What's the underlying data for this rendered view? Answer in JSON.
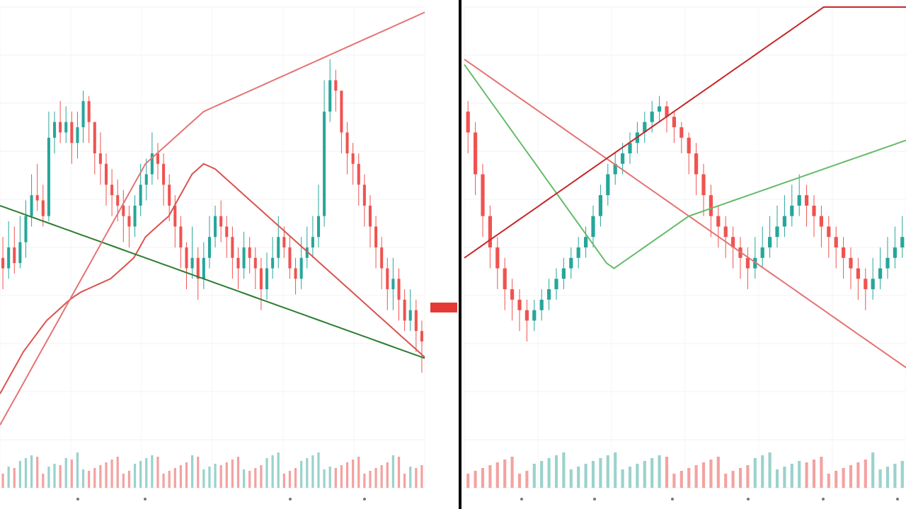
{
  "chart_data": [
    {
      "type": "candlestick",
      "panel": "left",
      "ylim": [
        180,
        1100
      ],
      "y_ticks": [],
      "grid": true,
      "candles": [
        [
          620,
          600,
          660,
          560
        ],
        [
          600,
          640,
          690,
          580
        ],
        [
          640,
          610,
          680,
          590
        ],
        [
          610,
          650,
          700,
          600
        ],
        [
          650,
          700,
          730,
          620
        ],
        [
          700,
          740,
          780,
          680
        ],
        [
          740,
          730,
          800,
          710
        ],
        [
          730,
          700,
          760,
          680
        ],
        [
          700,
          850,
          900,
          690
        ],
        [
          850,
          880,
          900,
          820
        ],
        [
          880,
          860,
          920,
          840
        ],
        [
          860,
          880,
          910,
          840
        ],
        [
          880,
          840,
          900,
          800
        ],
        [
          840,
          870,
          900,
          810
        ],
        [
          870,
          920,
          940,
          840
        ],
        [
          920,
          880,
          930,
          840
        ],
        [
          880,
          820,
          860,
          780
        ],
        [
          820,
          800,
          860,
          760
        ],
        [
          800,
          760,
          820,
          720
        ],
        [
          760,
          740,
          790,
          700
        ],
        [
          740,
          720,
          770,
          690
        ],
        [
          720,
          700,
          750,
          650
        ],
        [
          700,
          680,
          720,
          640
        ],
        [
          680,
          720,
          740,
          660
        ],
        [
          720,
          760,
          800,
          700
        ],
        [
          760,
          780,
          810,
          730
        ],
        [
          780,
          820,
          860,
          760
        ],
        [
          820,
          800,
          840,
          770
        ],
        [
          800,
          760,
          820,
          720
        ],
        [
          760,
          720,
          780,
          690
        ],
        [
          720,
          680,
          740,
          640
        ],
        [
          680,
          640,
          700,
          600
        ],
        [
          640,
          600,
          650,
          560
        ],
        [
          600,
          620,
          680,
          580
        ],
        [
          620,
          580,
          640,
          540
        ],
        [
          580,
          620,
          650,
          560
        ],
        [
          620,
          660,
          700,
          600
        ],
        [
          660,
          700,
          720,
          640
        ],
        [
          700,
          680,
          730,
          650
        ],
        [
          680,
          660,
          700,
          620
        ],
        [
          660,
          620,
          680,
          580
        ],
        [
          620,
          600,
          640,
          560
        ],
        [
          600,
          640,
          670,
          580
        ],
        [
          640,
          620,
          660,
          590
        ],
        [
          620,
          600,
          640,
          560
        ],
        [
          600,
          560,
          620,
          520
        ],
        [
          560,
          600,
          630,
          540
        ],
        [
          600,
          620,
          660,
          580
        ],
        [
          620,
          660,
          700,
          600
        ],
        [
          660,
          640,
          680,
          620
        ],
        [
          640,
          600,
          660,
          580
        ],
        [
          600,
          580,
          620,
          550
        ],
        [
          580,
          620,
          660,
          560
        ],
        [
          620,
          640,
          680,
          600
        ],
        [
          640,
          660,
          700,
          620
        ],
        [
          660,
          700,
          760,
          640
        ],
        [
          700,
          900,
          960,
          680
        ],
        [
          900,
          960,
          1000,
          880
        ],
        [
          960,
          940,
          980,
          900
        ],
        [
          940,
          860,
          920,
          820
        ],
        [
          860,
          820,
          880,
          780
        ],
        [
          820,
          800,
          840,
          760
        ],
        [
          800,
          760,
          820,
          720
        ],
        [
          760,
          720,
          780,
          680
        ],
        [
          720,
          680,
          740,
          640
        ],
        [
          680,
          640,
          700,
          600
        ],
        [
          640,
          600,
          660,
          560
        ],
        [
          600,
          560,
          620,
          520
        ],
        [
          560,
          580,
          620,
          520
        ],
        [
          580,
          540,
          600,
          500
        ],
        [
          540,
          500,
          560,
          480
        ],
        [
          500,
          520,
          560,
          480
        ],
        [
          520,
          480,
          540,
          440
        ],
        [
          480,
          460,
          500,
          400
        ]
      ],
      "series": [
        {
          "color": "#d9534f",
          "values": [
            360,
            380,
            400,
            420,
            440,
            455,
            470,
            485,
            500,
            510,
            520,
            530,
            540,
            548,
            555,
            560,
            565,
            570,
            575,
            580,
            590,
            600,
            610,
            620,
            640,
            660,
            670,
            680,
            690,
            700,
            720,
            740,
            760,
            780,
            790,
            800,
            795,
            790,
            780,
            770,
            760,
            750,
            740,
            730,
            720,
            710,
            700,
            690,
            680,
            670,
            660,
            650,
            640,
            630,
            620,
            610,
            600,
            590,
            580,
            570,
            560,
            550,
            540,
            530,
            520,
            510,
            500,
            490,
            480,
            470,
            460,
            450,
            440,
            430
          ]
        },
        {
          "color": "#2e7d32",
          "values": [
            720,
            716,
            712,
            708,
            704,
            700,
            696,
            692,
            688,
            684,
            680,
            676,
            672,
            668,
            664,
            660,
            656,
            652,
            648,
            644,
            640,
            636,
            632,
            628,
            624,
            620,
            616,
            612,
            608,
            604,
            600,
            596,
            592,
            588,
            584,
            580,
            576,
            572,
            568,
            564,
            560,
            556,
            552,
            548,
            544,
            540,
            536,
            532,
            528,
            524,
            520,
            516,
            512,
            508,
            504,
            500,
            496,
            492,
            488,
            484,
            480,
            476,
            472,
            468,
            464,
            460,
            456,
            452,
            448,
            444,
            440,
            436,
            432,
            428
          ]
        },
        {
          "color": "#e57373",
          "values": [
            300,
            320,
            340,
            360,
            380,
            400,
            420,
            440,
            460,
            480,
            500,
            520,
            540,
            560,
            580,
            600,
            620,
            640,
            660,
            680,
            700,
            720,
            740,
            760,
            780,
            800,
            810,
            820,
            830,
            840,
            850,
            860,
            870,
            880,
            890,
            900,
            905,
            910,
            915,
            920,
            925,
            930,
            935,
            940,
            945,
            950,
            955,
            960,
            965,
            970,
            975,
            980,
            985,
            990,
            995,
            1000,
            1005,
            1010,
            1015,
            1020,
            1025,
            1030,
            1035,
            1040,
            1045,
            1050,
            1055,
            1060,
            1065,
            1070,
            1075,
            1080,
            1085,
            1090
          ]
        }
      ]
    },
    {
      "type": "candlestick",
      "panel": "right",
      "ylim": [
        180,
        1100
      ],
      "grid": true,
      "candles": [
        [
          900,
          860,
          920,
          820
        ],
        [
          860,
          780,
          880,
          740
        ],
        [
          780,
          700,
          800,
          660
        ],
        [
          700,
          640,
          720,
          600
        ],
        [
          640,
          600,
          660,
          560
        ],
        [
          600,
          560,
          620,
          520
        ],
        [
          560,
          540,
          580,
          500
        ],
        [
          540,
          520,
          560,
          480
        ],
        [
          520,
          500,
          540,
          460
        ],
        [
          500,
          520,
          540,
          480
        ],
        [
          520,
          540,
          560,
          500
        ],
        [
          540,
          560,
          580,
          520
        ],
        [
          560,
          580,
          600,
          540
        ],
        [
          580,
          600,
          620,
          560
        ],
        [
          600,
          620,
          640,
          580
        ],
        [
          620,
          640,
          660,
          600
        ],
        [
          640,
          660,
          680,
          620
        ],
        [
          660,
          700,
          720,
          640
        ],
        [
          700,
          740,
          760,
          680
        ],
        [
          740,
          780,
          800,
          720
        ],
        [
          780,
          800,
          820,
          760
        ],
        [
          800,
          820,
          840,
          780
        ],
        [
          820,
          840,
          860,
          800
        ],
        [
          840,
          860,
          880,
          820
        ],
        [
          860,
          880,
          900,
          840
        ],
        [
          880,
          900,
          920,
          860
        ],
        [
          900,
          910,
          930,
          880
        ],
        [
          910,
          890,
          920,
          860
        ],
        [
          890,
          870,
          900,
          840
        ],
        [
          870,
          850,
          880,
          820
        ],
        [
          850,
          820,
          860,
          780
        ],
        [
          820,
          780,
          840,
          740
        ],
        [
          780,
          740,
          800,
          700
        ],
        [
          740,
          700,
          760,
          660
        ],
        [
          700,
          680,
          720,
          640
        ],
        [
          680,
          660,
          700,
          620
        ],
        [
          660,
          640,
          680,
          600
        ],
        [
          640,
          620,
          660,
          580
        ],
        [
          620,
          600,
          640,
          560
        ],
        [
          600,
          620,
          660,
          580
        ],
        [
          620,
          640,
          680,
          600
        ],
        [
          640,
          660,
          700,
          620
        ],
        [
          660,
          680,
          720,
          640
        ],
        [
          680,
          700,
          740,
          660
        ],
        [
          700,
          720,
          760,
          680
        ],
        [
          720,
          740,
          780,
          700
        ],
        [
          740,
          720,
          760,
          680
        ],
        [
          720,
          700,
          740,
          660
        ],
        [
          700,
          680,
          720,
          640
        ],
        [
          680,
          660,
          700,
          620
        ],
        [
          660,
          640,
          680,
          600
        ],
        [
          640,
          620,
          660,
          580
        ],
        [
          620,
          600,
          640,
          560
        ],
        [
          600,
          580,
          620,
          540
        ],
        [
          580,
          560,
          600,
          520
        ],
        [
          560,
          580,
          620,
          540
        ],
        [
          580,
          600,
          640,
          560
        ],
        [
          600,
          620,
          660,
          580
        ],
        [
          620,
          640,
          680,
          600
        ],
        [
          640,
          660,
          700,
          620
        ]
      ],
      "series": [
        {
          "color": "#e57373",
          "values": [
            1000,
            990,
            980,
            970,
            960,
            950,
            940,
            930,
            920,
            910,
            900,
            890,
            880,
            870,
            860,
            850,
            840,
            830,
            820,
            810,
            800,
            790,
            780,
            770,
            760,
            750,
            740,
            730,
            720,
            710,
            700,
            690,
            680,
            670,
            660,
            650,
            640,
            630,
            620,
            610,
            600,
            590,
            580,
            570,
            560,
            550,
            540,
            530,
            520,
            510,
            500,
            490,
            480,
            470,
            460,
            450,
            440,
            430,
            420,
            410
          ]
        },
        {
          "color": "#66bb6a",
          "values": [
            990,
            970,
            950,
            930,
            910,
            890,
            870,
            850,
            830,
            810,
            790,
            770,
            750,
            730,
            710,
            690,
            670,
            650,
            630,
            610,
            600,
            610,
            620,
            630,
            640,
            650,
            660,
            670,
            680,
            690,
            700,
            705,
            710,
            715,
            720,
            725,
            730,
            735,
            740,
            745,
            750,
            755,
            760,
            765,
            770,
            775,
            780,
            785,
            790,
            795,
            800,
            805,
            810,
            815,
            820,
            825,
            830,
            835,
            840,
            845
          ]
        },
        {
          "color": "#c62828",
          "values": [
            620,
            630,
            640,
            650,
            660,
            670,
            680,
            690,
            700,
            710,
            720,
            730,
            740,
            750,
            760,
            770,
            780,
            790,
            800,
            810,
            820,
            830,
            840,
            850,
            860,
            870,
            880,
            890,
            900,
            910,
            920,
            930,
            940,
            950,
            960,
            970,
            980,
            990,
            1000,
            1010,
            1020,
            1030,
            1040,
            1050,
            1060,
            1070,
            1080,
            1090,
            1100,
            1100,
            1100,
            1100,
            1100,
            1100,
            1100,
            1100,
            1100,
            1100,
            1100,
            1100
          ]
        }
      ]
    }
  ],
  "price_label": {
    "text": "",
    "color": "#e53935"
  },
  "axis": {
    "labels": []
  }
}
